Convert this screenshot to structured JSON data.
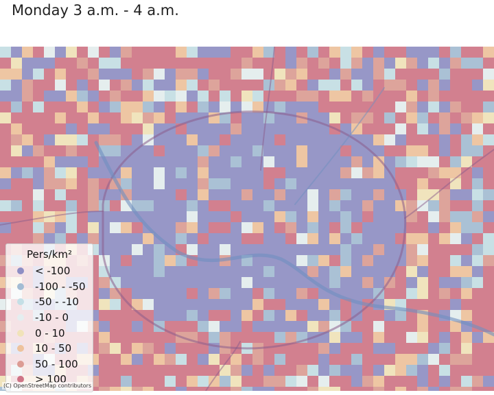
{
  "title": "Monday 3 a.m. - 4 a.m.",
  "legend": {
    "title": "Pers/km²",
    "items": [
      {
        "label": "< -100",
        "color": "#8e8ec4"
      },
      {
        "label": "-100 - -50",
        "color": "#a3bcd4"
      },
      {
        "label": "-50 - -10",
        "color": "#c4dfe6"
      },
      {
        "label": "-10 - 0",
        "color": "#e4eef0"
      },
      {
        "label": "0 - 10",
        "color": "#f1e3b9"
      },
      {
        "label": "10 - 50",
        "color": "#eec29c"
      },
      {
        "label": "50 - 100",
        "color": "#dc9c94"
      },
      {
        "label": "> 100",
        "color": "#cf7486"
      }
    ]
  },
  "attribution": "(C) OpenStreetMap contributors"
}
